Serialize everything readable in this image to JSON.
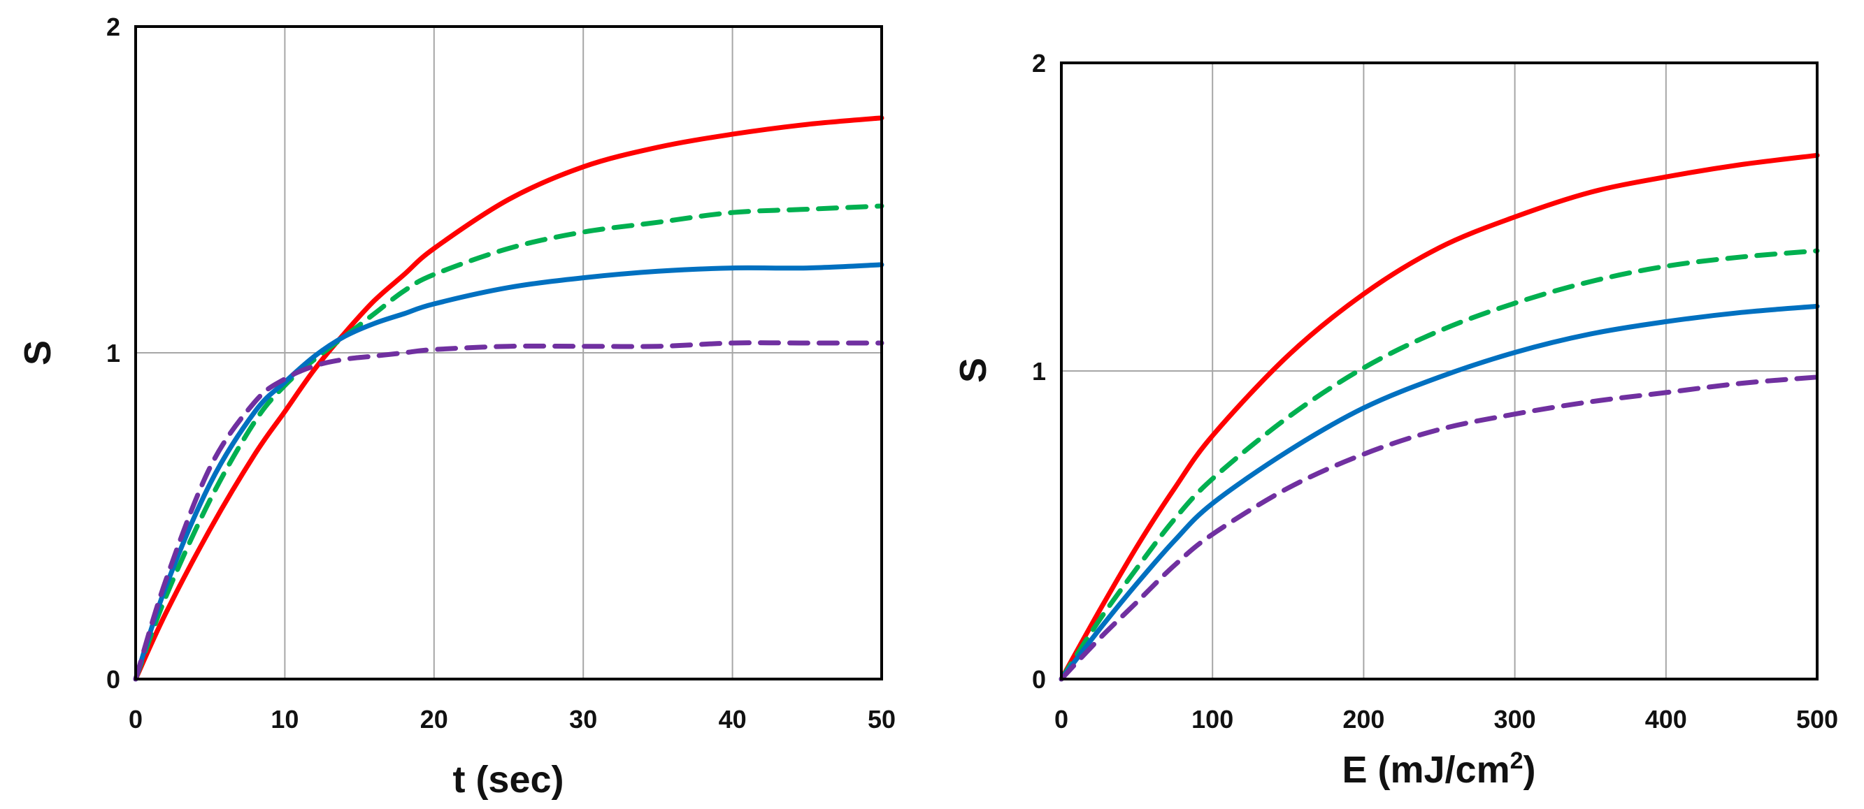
{
  "chart_data": [
    {
      "type": "line",
      "title": "",
      "xlabel": "t (sec)",
      "ylabel": "S",
      "xlim": [
        0,
        50
      ],
      "ylim": [
        0,
        2
      ],
      "xticks": [
        "0",
        "10",
        "20",
        "30",
        "40",
        "50"
      ],
      "yticks": [
        "0",
        "1",
        "2"
      ],
      "grid": true,
      "legend": "none",
      "x": [
        0,
        2,
        5,
        8,
        10,
        12,
        14,
        16,
        18,
        20,
        25,
        30,
        35,
        40,
        45,
        50
      ],
      "series": [
        {
          "name": "red solid",
          "color": "#ff0000",
          "style": "solid",
          "values": [
            0,
            0.2,
            0.46,
            0.69,
            0.82,
            0.95,
            1.06,
            1.16,
            1.24,
            1.32,
            1.47,
            1.57,
            1.63,
            1.67,
            1.7,
            1.72
          ]
        },
        {
          "name": "green dashed",
          "color": "#00b050",
          "style": "dashed",
          "values": [
            0,
            0.25,
            0.55,
            0.79,
            0.9,
            0.98,
            1.05,
            1.12,
            1.19,
            1.24,
            1.32,
            1.37,
            1.4,
            1.43,
            1.44,
            1.45
          ]
        },
        {
          "name": "blue solid",
          "color": "#0070c0",
          "style": "solid",
          "values": [
            0,
            0.28,
            0.6,
            0.82,
            0.91,
            0.99,
            1.05,
            1.09,
            1.12,
            1.15,
            1.2,
            1.23,
            1.25,
            1.26,
            1.26,
            1.27
          ]
        },
        {
          "name": "purple dashed",
          "color": "#7030a0",
          "style": "dashed",
          "values": [
            0,
            0.3,
            0.65,
            0.85,
            0.92,
            0.96,
            0.98,
            0.99,
            1.0,
            1.01,
            1.02,
            1.02,
            1.02,
            1.03,
            1.03,
            1.03
          ]
        }
      ]
    },
    {
      "type": "line",
      "title": "",
      "xlabel": "E (mJ/cm",
      "xlabel_sup": "2",
      "xlabel_tail": ")",
      "ylabel": "S",
      "xlim": [
        0,
        500
      ],
      "ylim": [
        0,
        2
      ],
      "xticks": [
        "0",
        "100",
        "200",
        "300",
        "400",
        "500"
      ],
      "yticks": [
        "0",
        "1",
        "2"
      ],
      "grid": true,
      "legend": "none",
      "x": [
        0,
        25,
        50,
        75,
        100,
        150,
        200,
        250,
        300,
        350,
        400,
        450,
        500
      ],
      "series": [
        {
          "name": "red solid",
          "color": "#ff0000",
          "style": "solid",
          "values": [
            0,
            0.22,
            0.43,
            0.62,
            0.79,
            1.05,
            1.25,
            1.4,
            1.5,
            1.58,
            1.63,
            1.67,
            1.7
          ]
        },
        {
          "name": "green dashed",
          "color": "#00b050",
          "style": "dashed",
          "values": [
            0,
            0.19,
            0.36,
            0.52,
            0.65,
            0.85,
            1.01,
            1.13,
            1.22,
            1.29,
            1.34,
            1.37,
            1.39
          ]
        },
        {
          "name": "blue solid",
          "color": "#0070c0",
          "style": "solid",
          "values": [
            0,
            0.16,
            0.31,
            0.45,
            0.57,
            0.74,
            0.88,
            0.98,
            1.06,
            1.12,
            1.16,
            1.19,
            1.21
          ]
        },
        {
          "name": "purple dashed",
          "color": "#7030a0",
          "style": "dashed",
          "values": [
            0,
            0.13,
            0.25,
            0.37,
            0.47,
            0.62,
            0.73,
            0.81,
            0.86,
            0.9,
            0.93,
            0.96,
            0.98
          ]
        }
      ]
    }
  ]
}
